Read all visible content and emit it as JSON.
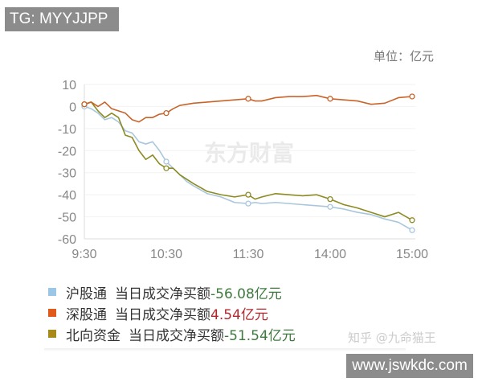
{
  "watermark_tg": "TG: MYYJJPP",
  "watermark_brand": "东方财富",
  "watermark_zhihu": "知乎 @九命猫王",
  "watermark_site": "www.jswkdc.com",
  "chart_data": {
    "type": "line",
    "unit_label": "单位：亿元",
    "x_ticks": [
      "9:30",
      "10:30",
      "11:30",
      "14:00",
      "15:00"
    ],
    "x_minutes": [
      0,
      5,
      10,
      15,
      20,
      25,
      30,
      35,
      40,
      45,
      50,
      55,
      60,
      65,
      70,
      75,
      80,
      90,
      100,
      110,
      120,
      125,
      130,
      140,
      150,
      160,
      170,
      180,
      190,
      200,
      210,
      220,
      230,
      240
    ],
    "ylim": [
      -60,
      10
    ],
    "y_ticks": [
      10,
      0,
      -10,
      -20,
      -30,
      -40,
      -50,
      -60
    ],
    "grid": true,
    "marker_minutes": [
      0,
      60,
      120,
      180,
      240
    ],
    "series": [
      {
        "name": "沪股通",
        "legend_text": "当日成交净买额",
        "final": "-56.08亿元",
        "final_color": "#3d7a3d",
        "color": "#a9c7dc",
        "legend_color": "#9cc6e6",
        "values": [
          0,
          -1,
          -3,
          -6,
          -5,
          -7,
          -11,
          -12,
          -16,
          -17,
          -16,
          -20,
          -25,
          -28,
          -31,
          -34,
          -36,
          -39.5,
          -41,
          -43.5,
          -44,
          -43.5,
          -44,
          -43.5,
          -44,
          -44.5,
          -45,
          -45.5,
          -46.5,
          -48,
          -49,
          -51,
          -52.5,
          -56.08
        ]
      },
      {
        "name": "深股通",
        "legend_text": "当日成交净买额",
        "final": "4.54亿元",
        "final_color": "#b0282e",
        "color": "#c8642a",
        "legend_color": "#e05a1a",
        "values": [
          1,
          2,
          0,
          2,
          -1,
          -2,
          -3,
          -6,
          -7,
          -5,
          -5,
          -3.5,
          -3,
          -1,
          0.5,
          1,
          1.5,
          2,
          2.5,
          3,
          3.5,
          2.5,
          2.5,
          4,
          4.5,
          4.5,
          5,
          3.5,
          3,
          2.5,
          1,
          1.5,
          4,
          4.54
        ]
      },
      {
        "name": "北向资金",
        "legend_text": "当日成交净买额",
        "final": "-51.54亿元",
        "final_color": "#3d7a3d",
        "color": "#8c8a22",
        "legend_color": "#a88a1a",
        "values": [
          1,
          2,
          -2,
          -5,
          -3,
          -5,
          -13,
          -14,
          -20,
          -24,
          -22,
          -26,
          -28,
          -28,
          -31,
          -33,
          -35,
          -38.5,
          -40,
          -41,
          -40,
          -42,
          -41,
          -39.5,
          -40,
          -40.5,
          -40,
          -42,
          -44.5,
          -46,
          -48,
          -50,
          -48,
          -51.54
        ]
      }
    ]
  }
}
